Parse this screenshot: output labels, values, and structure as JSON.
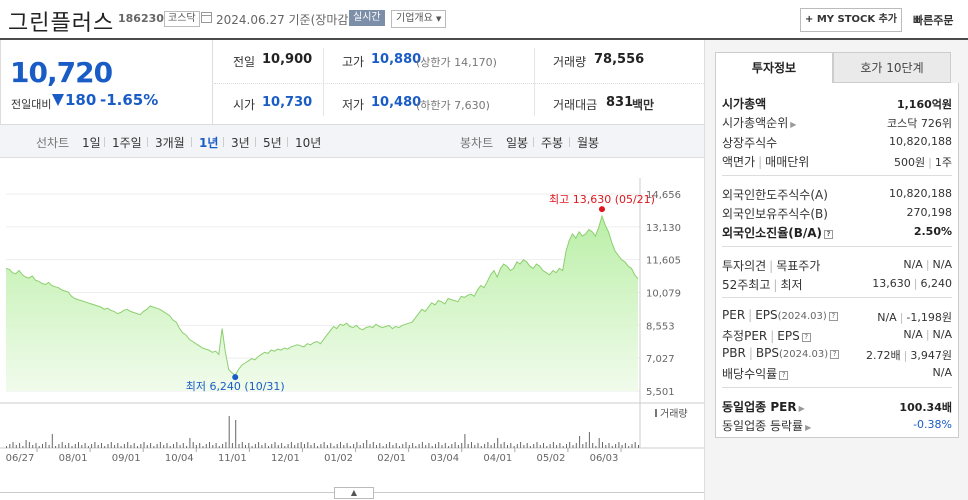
{
  "header": {
    "company_name": "그린플러스",
    "stock_code": "186230",
    "market": "코스닥",
    "date_text": "2024.06.27 기준(장마감)",
    "realtime": "실시간",
    "company_info": "기업개요",
    "mystock_button": "+ MY STOCK 추가",
    "quick_order": "빠른주문"
  },
  "price": {
    "current": "10,720",
    "change_label": "전일대비",
    "change": "180",
    "change_rate": "-1.65%",
    "color": "#1a5cc6"
  },
  "quote": {
    "prev_close_label": "전일",
    "prev_close": "10,900",
    "high_label": "고가",
    "high": "10,880",
    "upper_limit": "(상한가 14,170)",
    "volume_label": "거래량",
    "volume": "78,556",
    "open_label": "시가",
    "open": "10,730",
    "low_label": "저가",
    "low": "10,480",
    "lower_limit": "(하한가 7,630)",
    "trade_value_label": "거래대금",
    "trade_value": "831",
    "trade_value_unit": "백만"
  },
  "toolbar": {
    "line_chart_label": "선차트",
    "line_periods": [
      "1일",
      "1주일",
      "3개월",
      "1년",
      "3년",
      "5년",
      "10년"
    ],
    "selected_period": "1년",
    "candle_chart_label": "봉차트",
    "candle_periods": [
      "일봉",
      "주봉",
      "월봉"
    ]
  },
  "chart_data": {
    "type": "area",
    "y_ticks": [
      "14,656",
      "13,130",
      "11,605",
      "10,079",
      "8,553",
      "7,027",
      "5,501"
    ],
    "ylim": [
      5501,
      14656
    ],
    "x_ticks": [
      "06/27",
      "08/01",
      "09/01",
      "10/04",
      "11/01",
      "12/01",
      "01/02",
      "02/01",
      "03/04",
      "04/01",
      "05/02",
      "06/03"
    ],
    "high_annotation": "최고 13,630 (05/21)",
    "low_annotation": "최저 6,240 (10/31)",
    "volume_label": "거래량",
    "series": [
      {
        "values": [
          11200,
          11150,
          11000,
          10950,
          11100,
          10900,
          10800,
          10750,
          10850,
          10650,
          10600,
          10500,
          10450,
          10550,
          10400,
          10350,
          10300,
          10200,
          10150,
          10100,
          9900,
          9800,
          9750,
          9700,
          9650,
          9600,
          9550,
          9500,
          9450,
          9400,
          9300,
          9350,
          9250,
          9200,
          9100,
          9150,
          9250,
          9300,
          9200,
          9150,
          9100,
          9050,
          9200,
          9300,
          9450,
          9400,
          9350,
          9300,
          9200,
          9100,
          9000,
          8800,
          8700,
          8400,
          8200,
          8100,
          7900,
          7800,
          7700,
          7600,
          7500,
          7450,
          7400,
          7300,
          7350,
          7200,
          8400,
          7300,
          6500,
          6350,
          6240,
          6500,
          6700,
          6800,
          6900,
          7000,
          6950,
          7100,
          7200,
          7300,
          7250,
          7400,
          7350,
          7450,
          7400,
          7500,
          7450,
          7550,
          7600,
          7650,
          7600,
          7550,
          7700,
          7650,
          7750,
          7800,
          7700,
          7900,
          8100,
          8300,
          8500,
          8400,
          8600,
          8550,
          8650,
          8500,
          8450,
          8550,
          8400,
          8350,
          8450,
          8500,
          8450,
          8600,
          8500,
          8450,
          8500,
          8550,
          8400,
          8500,
          8450,
          8550,
          8600,
          8650,
          8700,
          8900,
          9100,
          9300,
          9200,
          9400,
          9600,
          9500,
          9700,
          9650,
          9550,
          9800,
          9750,
          9700,
          9650,
          9900,
          9850,
          9950,
          10000,
          9900,
          10200,
          10400,
          10300,
          10600,
          10900,
          11100,
          10800,
          11200,
          11400,
          11300,
          11100,
          11200,
          11500,
          11400,
          11600,
          11500,
          11300,
          11200,
          11400,
          11300,
          11100,
          11000,
          10900,
          11100,
          11000,
          11200,
          11100,
          12000,
          12500,
          12800,
          12600,
          12900,
          12700,
          12800,
          13000,
          12900,
          12700,
          13100,
          13630,
          13200,
          12900,
          12400,
          12000,
          11800,
          11600,
          11500,
          11300,
          11200,
          10900,
          10720
        ]
      }
    ]
  },
  "right_panel": {
    "tab_invest": "투자정보",
    "tab_orderbook": "호가 10단계",
    "market_cap_label": "시가총액",
    "market_cap": "1,160억원",
    "market_cap_rank_label": "시가총액순위",
    "market_cap_rank": "코스닥 726위",
    "shares_label": "상장주식수",
    "shares": "10,820,188",
    "face_value_label": "액면가",
    "trading_unit_label": "매매단위",
    "face_value": "500원",
    "trading_unit": "1주",
    "foreign_limit_label": "외국인한도주식수(A)",
    "foreign_limit": "10,820,188",
    "foreign_held_label": "외국인보유주식수(B)",
    "foreign_held": "270,198",
    "foreign_rate_label": "외국인소진율(B/A)",
    "foreign_rate": "2.50%",
    "opinion_label": "투자의견",
    "target_label": "목표주가",
    "opinion": "N/A",
    "target": "N/A",
    "week52_label": "52주최고",
    "week52_low_label": "최저",
    "week52_high": "13,630",
    "week52_low": "6,240",
    "per_label": "PER",
    "eps_label": "EPS",
    "eps_period": "(2024.03)",
    "per": "N/A",
    "eps": "-1,198원",
    "est_per_label": "추정PER",
    "est_eps_label": "EPS",
    "est_per": "N/A",
    "est_eps": "N/A",
    "pbr_label": "PBR",
    "bps_label": "BPS",
    "bps_period": "(2024.03)",
    "pbr": "2.72배",
    "bps": "3,947원",
    "dividend_label": "배당수익률",
    "dividend": "N/A",
    "sector_per_label": "동일업종 PER",
    "sector_per": "100.34배",
    "sector_rate_label": "동일업종 등락률",
    "sector_rate": "-0.38%"
  }
}
